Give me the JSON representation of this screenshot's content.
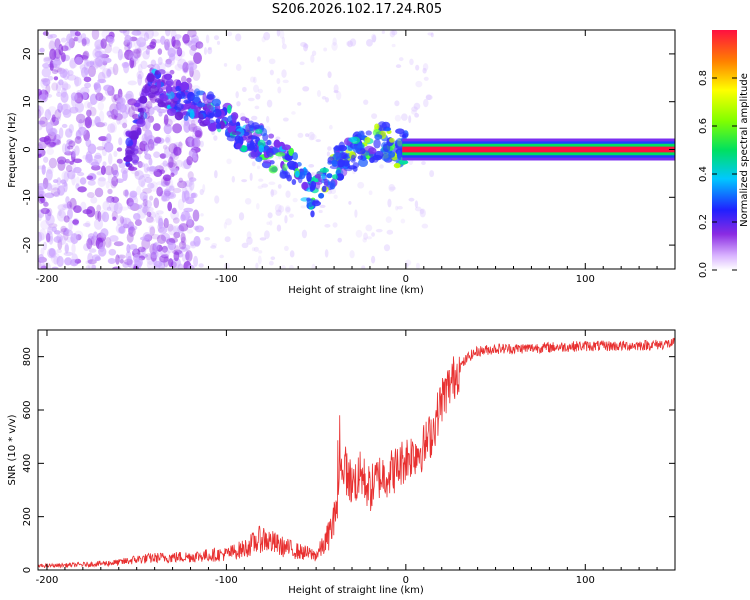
{
  "title": "S206.2026.102.17.24.R05",
  "chart_data": [
    {
      "type": "heatmap",
      "xlabel": "Height of straight line (km)",
      "ylabel": "Frequency (Hz)",
      "xlim": [
        -205,
        150
      ],
      "ylim": [
        -25,
        25
      ],
      "xticks": [
        -200,
        -100,
        0,
        100
      ],
      "yticks": [
        -20,
        -10,
        0,
        10,
        20
      ],
      "description_ridge": [
        [
          -150,
          6
        ],
        [
          -140,
          14
        ],
        [
          -130,
          11
        ],
        [
          -115,
          9
        ],
        [
          -100,
          6
        ],
        [
          -90,
          3
        ],
        [
          -80,
          1
        ],
        [
          -70,
          -2
        ],
        [
          -60,
          -5
        ],
        [
          -52,
          -10
        ],
        [
          -45,
          -7
        ],
        [
          -38,
          -3
        ],
        [
          -30,
          -1
        ],
        [
          -20,
          1
        ],
        [
          -12,
          2
        ],
        [
          -5,
          0
        ],
        [
          0,
          1
        ],
        [
          150,
          0
        ]
      ],
      "colorbar": {
        "label": "Normalized spectral amplitude",
        "range": [
          0,
          1
        ],
        "ticks": [
          "0.0",
          "0.2",
          "0.4",
          "0.6",
          "0.8"
        ]
      }
    },
    {
      "type": "line",
      "xlabel": "Height of straight line (km)",
      "ylabel": "SNR (10 * v/v)",
      "xlim": [
        -205,
        150
      ],
      "ylim": [
        0,
        900
      ],
      "xticks": [
        -200,
        -100,
        0,
        100
      ],
      "yticks": [
        0,
        200,
        400,
        600,
        800
      ],
      "color": "#e83030",
      "x": [
        -205,
        -180,
        -160,
        -150,
        -140,
        -120,
        -100,
        -90,
        -80,
        -70,
        -60,
        -50,
        -45,
        -40,
        -35,
        -30,
        -25,
        -20,
        -15,
        -10,
        -5,
        0,
        5,
        10,
        15,
        20,
        25,
        30,
        35,
        40,
        50,
        60,
        80,
        100,
        120,
        140,
        150
      ],
      "y": [
        15,
        20,
        28,
        40,
        45,
        50,
        60,
        80,
        120,
        90,
        70,
        55,
        100,
        180,
        400,
        320,
        360,
        300,
        350,
        360,
        380,
        420,
        440,
        460,
        520,
        640,
        700,
        760,
        800,
        820,
        830,
        830,
        835,
        840,
        840,
        845,
        850
      ]
    }
  ]
}
